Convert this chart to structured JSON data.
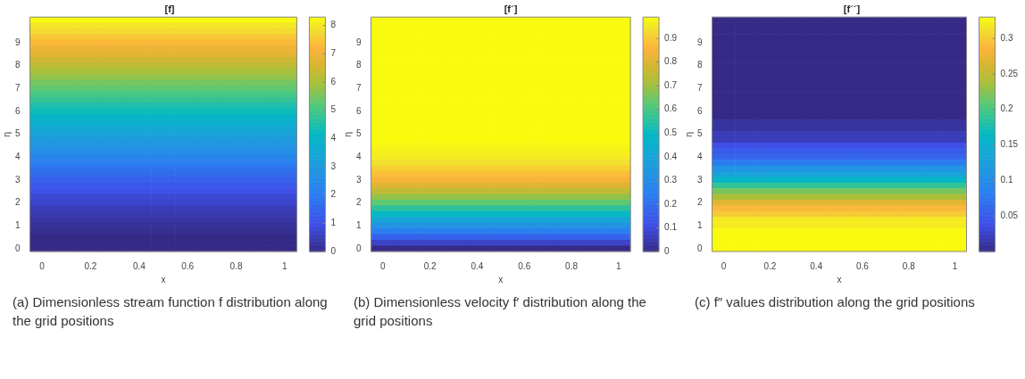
{
  "chart_data": [
    {
      "type": "heatmap",
      "title": "[f]",
      "xlabel": "x",
      "ylabel": "η",
      "categories": [
        "0",
        null,
        "0.2",
        null,
        "0.4",
        null,
        "0.6",
        null,
        "0.8",
        null,
        "1"
      ],
      "y_categories": [
        null,
        null,
        null,
        null,
        "9",
        null,
        null,
        null,
        "8",
        null,
        null,
        null,
        "7",
        null,
        null,
        null,
        "6",
        null,
        null,
        null,
        "5",
        null,
        null,
        null,
        "4",
        null,
        null,
        null,
        "3",
        null,
        null,
        null,
        "2",
        null,
        null,
        null,
        "1",
        null,
        null,
        null,
        "0"
      ],
      "cells": [
        [
          8.3,
          8.3,
          8.3,
          8.3,
          8.3,
          8.3,
          8.3,
          8.3,
          8.3,
          8.3,
          8.3
        ],
        [
          8.0,
          8.0,
          8.0,
          8.0,
          8.0,
          8.0,
          8.0,
          8.0,
          8.0,
          8.0,
          8.0
        ],
        [
          7.8,
          7.8,
          7.8,
          7.8,
          7.8,
          7.8,
          7.8,
          7.8,
          7.8,
          7.8,
          7.8
        ],
        [
          7.5,
          7.5,
          7.5,
          7.5,
          7.5,
          7.5,
          7.5,
          7.5,
          7.5,
          7.5,
          7.5
        ],
        [
          7.3,
          7.3,
          7.3,
          7.3,
          7.3,
          7.3,
          7.3,
          7.3,
          7.3,
          7.3,
          7.3
        ],
        [
          7.0,
          7.0,
          7.0,
          7.0,
          7.0,
          7.0,
          7.0,
          7.0,
          7.0,
          7.0,
          7.0
        ],
        [
          6.8,
          6.8,
          6.8,
          6.8,
          6.8,
          6.8,
          6.8,
          6.8,
          6.8,
          6.8,
          6.8
        ],
        [
          6.5,
          6.5,
          6.5,
          6.5,
          6.5,
          6.5,
          6.5,
          6.5,
          6.5,
          6.5,
          6.5
        ],
        [
          6.3,
          6.3,
          6.3,
          6.3,
          6.3,
          6.3,
          6.3,
          6.3,
          6.3,
          6.3,
          6.3
        ],
        [
          6.0,
          6.0,
          6.0,
          6.0,
          6.0,
          6.0,
          6.0,
          6.0,
          6.0,
          6.0,
          6.0
        ],
        [
          5.8,
          5.8,
          5.8,
          5.8,
          5.8,
          5.8,
          5.8,
          5.8,
          5.8,
          5.8,
          5.8
        ],
        [
          5.5,
          5.5,
          5.5,
          5.5,
          5.5,
          5.5,
          5.5,
          5.5,
          5.5,
          5.5,
          5.5
        ],
        [
          5.3,
          5.3,
          5.3,
          5.3,
          5.3,
          5.3,
          5.3,
          5.3,
          5.3,
          5.3,
          5.3
        ],
        [
          5.0,
          5.0,
          5.0,
          5.0,
          5.0,
          5.0,
          5.0,
          5.0,
          5.0,
          5.0,
          5.0
        ],
        [
          4.8,
          4.8,
          4.8,
          4.8,
          4.8,
          4.8,
          4.8,
          4.8,
          4.8,
          4.8,
          4.8
        ],
        [
          4.5,
          4.5,
          4.5,
          4.5,
          4.5,
          4.5,
          4.5,
          4.5,
          4.5,
          4.5,
          4.5
        ],
        [
          4.3,
          4.3,
          4.3,
          4.3,
          4.3,
          4.3,
          4.3,
          4.3,
          4.3,
          4.3,
          4.3
        ],
        [
          4.0,
          4.0,
          4.0,
          4.0,
          4.0,
          4.0,
          4.0,
          4.0,
          4.0,
          4.0,
          4.0
        ],
        [
          3.8,
          3.8,
          3.8,
          3.8,
          3.8,
          3.8,
          3.8,
          3.8,
          3.8,
          3.8,
          3.8
        ],
        [
          3.5,
          3.5,
          3.5,
          3.5,
          3.5,
          3.5,
          3.5,
          3.5,
          3.5,
          3.5,
          3.5
        ],
        [
          3.3,
          3.3,
          3.3,
          3.3,
          3.3,
          3.3,
          3.3,
          3.3,
          3.3,
          3.3,
          3.3
        ],
        [
          3.0,
          3.0,
          3.0,
          3.0,
          3.0,
          3.0,
          3.0,
          3.0,
          3.0,
          3.0,
          3.0
        ],
        [
          2.8,
          2.8,
          2.8,
          2.8,
          2.8,
          2.8,
          2.8,
          2.8,
          2.8,
          2.8,
          2.8
        ],
        [
          2.6,
          2.6,
          2.6,
          2.6,
          2.6,
          2.6,
          2.6,
          2.6,
          2.6,
          2.6,
          2.6
        ],
        [
          2.3,
          2.3,
          2.3,
          2.3,
          2.3,
          2.3,
          2.3,
          2.3,
          2.3,
          2.3,
          2.3
        ],
        [
          2.1,
          2.1,
          2.1,
          2.1,
          2.1,
          2.1,
          2.1,
          2.1,
          2.1,
          2.1,
          2.1
        ],
        [
          1.8,
          1.8,
          1.8,
          1.8,
          1.8,
          1.8,
          1.8,
          1.8,
          1.8,
          1.8,
          1.8
        ],
        [
          1.6,
          1.6,
          1.6,
          1.6,
          1.6,
          1.6,
          1.6,
          1.6,
          1.6,
          1.6,
          1.6
        ],
        [
          1.4,
          1.4,
          1.4,
          1.4,
          1.4,
          1.4,
          1.4,
          1.4,
          1.4,
          1.4,
          1.4
        ],
        [
          1.2,
          1.2,
          1.2,
          1.2,
          1.2,
          1.2,
          1.2,
          1.2,
          1.2,
          1.2,
          1.2
        ],
        [
          1.0,
          1.0,
          1.0,
          1.0,
          1.0,
          1.0,
          1.0,
          1.0,
          1.0,
          1.0,
          1.0
        ],
        [
          0.8,
          0.8,
          0.8,
          0.8,
          0.8,
          0.8,
          0.8,
          0.8,
          0.8,
          0.8,
          0.8
        ],
        [
          0.7,
          0.7,
          0.7,
          0.7,
          0.7,
          0.7,
          0.7,
          0.7,
          0.7,
          0.7,
          0.7
        ],
        [
          0.5,
          0.5,
          0.5,
          0.5,
          0.5,
          0.5,
          0.5,
          0.5,
          0.5,
          0.5,
          0.5
        ],
        [
          0.4,
          0.4,
          0.4,
          0.4,
          0.4,
          0.4,
          0.4,
          0.4,
          0.4,
          0.4,
          0.4
        ],
        [
          0.3,
          0.3,
          0.3,
          0.3,
          0.3,
          0.3,
          0.3,
          0.3,
          0.3,
          0.3,
          0.3
        ],
        [
          0.2,
          0.2,
          0.2,
          0.2,
          0.2,
          0.2,
          0.2,
          0.2,
          0.2,
          0.2,
          0.2
        ],
        [
          0.1,
          0.1,
          0.1,
          0.1,
          0.1,
          0.1,
          0.1,
          0.1,
          0.1,
          0.1,
          0.1
        ],
        [
          0.0,
          0.0,
          0.0,
          0.0,
          0.0,
          0.0,
          0.0,
          0.0,
          0.0,
          0.0,
          0.0
        ],
        [
          0.0,
          0.0,
          0.0,
          0.0,
          0.0,
          0.0,
          0.0,
          0.0,
          0.0,
          0.0,
          0.0
        ],
        [
          0.0,
          0.0,
          0.0,
          0.0,
          0.0,
          0.0,
          0.0,
          0.0,
          0.0,
          0.0,
          0.0
        ]
      ],
      "clim": [
        0,
        8.3
      ],
      "cticks": [
        0,
        1,
        2,
        3,
        4,
        5,
        6,
        7,
        8
      ],
      "annotations": [
        "(a) Dimensionless stream function f distribution along the grid positions"
      ]
    },
    {
      "type": "heatmap",
      "title": "[f´]",
      "xlabel": "x",
      "ylabel": "η",
      "categories": [
        "0",
        null,
        "0.2",
        null,
        "0.4",
        null,
        "0.6",
        null,
        "0.8",
        null,
        "1"
      ],
      "y_categories": [
        null,
        null,
        null,
        null,
        "9",
        null,
        null,
        null,
        "8",
        null,
        null,
        null,
        "7",
        null,
        null,
        null,
        "6",
        null,
        null,
        null,
        "5",
        null,
        null,
        null,
        "4",
        null,
        null,
        null,
        "3",
        null,
        null,
        null,
        "2",
        null,
        null,
        null,
        "1",
        null,
        null,
        null,
        "0"
      ],
      "cells": [
        [
          0.99,
          0.99,
          0.99,
          0.99,
          0.99,
          0.99,
          0.99,
          0.99,
          0.99,
          0.99,
          0.99
        ],
        [
          0.99,
          0.99,
          0.99,
          0.99,
          0.99,
          0.99,
          0.99,
          0.99,
          0.99,
          0.99,
          0.99
        ],
        [
          0.99,
          0.99,
          0.99,
          0.99,
          0.99,
          0.99,
          0.99,
          0.99,
          0.99,
          0.99,
          0.99
        ],
        [
          0.99,
          0.99,
          0.99,
          0.99,
          0.99,
          0.99,
          0.99,
          0.99,
          0.99,
          0.99,
          0.99
        ],
        [
          0.99,
          0.99,
          0.99,
          0.99,
          0.99,
          0.99,
          0.99,
          0.99,
          0.99,
          0.99,
          0.99
        ],
        [
          0.99,
          0.99,
          0.99,
          0.99,
          0.99,
          0.99,
          0.99,
          0.99,
          0.99,
          0.99,
          0.99
        ],
        [
          0.99,
          0.99,
          0.99,
          0.99,
          0.99,
          0.99,
          0.99,
          0.99,
          0.99,
          0.99,
          0.99
        ],
        [
          0.99,
          0.99,
          0.99,
          0.99,
          0.99,
          0.99,
          0.99,
          0.99,
          0.99,
          0.99,
          0.99
        ],
        [
          0.99,
          0.99,
          0.99,
          0.99,
          0.99,
          0.99,
          0.99,
          0.99,
          0.99,
          0.99,
          0.99
        ],
        [
          0.99,
          0.99,
          0.99,
          0.99,
          0.99,
          0.99,
          0.99,
          0.99,
          0.99,
          0.99,
          0.99
        ],
        [
          0.99,
          0.99,
          0.99,
          0.99,
          0.99,
          0.99,
          0.99,
          0.99,
          0.99,
          0.99,
          0.99
        ],
        [
          0.99,
          0.99,
          0.99,
          0.99,
          0.99,
          0.99,
          0.99,
          0.99,
          0.99,
          0.99,
          0.99
        ],
        [
          0.99,
          0.99,
          0.99,
          0.99,
          0.99,
          0.99,
          0.99,
          0.99,
          0.99,
          0.99,
          0.99
        ],
        [
          0.99,
          0.99,
          0.99,
          0.99,
          0.99,
          0.99,
          0.99,
          0.99,
          0.99,
          0.99,
          0.99
        ],
        [
          0.99,
          0.99,
          0.99,
          0.99,
          0.99,
          0.99,
          0.99,
          0.99,
          0.99,
          0.99,
          0.99
        ],
        [
          0.99,
          0.99,
          0.99,
          0.99,
          0.99,
          0.99,
          0.99,
          0.99,
          0.99,
          0.99,
          0.99
        ],
        [
          0.99,
          0.99,
          0.99,
          0.99,
          0.99,
          0.99,
          0.99,
          0.99,
          0.99,
          0.99,
          0.99
        ],
        [
          0.99,
          0.99,
          0.99,
          0.99,
          0.99,
          0.99,
          0.99,
          0.99,
          0.99,
          0.99,
          0.99
        ],
        [
          0.99,
          0.99,
          0.99,
          0.99,
          0.99,
          0.99,
          0.99,
          0.99,
          0.99,
          0.99,
          0.99
        ],
        [
          0.99,
          0.99,
          0.99,
          0.99,
          0.99,
          0.99,
          0.99,
          0.99,
          0.99,
          0.99,
          0.99
        ],
        [
          0.99,
          0.99,
          0.99,
          0.99,
          0.99,
          0.99,
          0.99,
          0.99,
          0.99,
          0.99,
          0.99
        ],
        [
          0.99,
          0.99,
          0.99,
          0.99,
          0.99,
          0.99,
          0.99,
          0.99,
          0.99,
          0.99,
          0.99
        ],
        [
          0.98,
          0.98,
          0.98,
          0.98,
          0.98,
          0.98,
          0.98,
          0.98,
          0.98,
          0.98,
          0.98
        ],
        [
          0.97,
          0.97,
          0.97,
          0.97,
          0.97,
          0.97,
          0.97,
          0.97,
          0.97,
          0.97,
          0.97
        ],
        [
          0.96,
          0.96,
          0.96,
          0.96,
          0.96,
          0.96,
          0.96,
          0.96,
          0.96,
          0.96,
          0.96
        ],
        [
          0.94,
          0.94,
          0.94,
          0.94,
          0.94,
          0.94,
          0.94,
          0.94,
          0.94,
          0.94,
          0.94
        ],
        [
          0.91,
          0.91,
          0.91,
          0.91,
          0.91,
          0.91,
          0.91,
          0.91,
          0.91,
          0.91,
          0.91
        ],
        [
          0.88,
          0.88,
          0.88,
          0.88,
          0.88,
          0.88,
          0.88,
          0.88,
          0.88,
          0.88,
          0.88
        ],
        [
          0.85,
          0.85,
          0.85,
          0.85,
          0.85,
          0.85,
          0.85,
          0.85,
          0.85,
          0.85,
          0.85
        ],
        [
          0.8,
          0.8,
          0.8,
          0.8,
          0.8,
          0.8,
          0.8,
          0.8,
          0.8,
          0.8,
          0.8
        ],
        [
          0.75,
          0.75,
          0.75,
          0.75,
          0.75,
          0.75,
          0.75,
          0.75,
          0.75,
          0.75,
          0.75
        ],
        [
          0.69,
          0.69,
          0.69,
          0.69,
          0.69,
          0.69,
          0.69,
          0.69,
          0.69,
          0.69,
          0.69
        ],
        [
          0.63,
          0.63,
          0.63,
          0.63,
          0.63,
          0.63,
          0.63,
          0.63,
          0.63,
          0.63,
          0.63
        ],
        [
          0.56,
          0.56,
          0.56,
          0.56,
          0.56,
          0.56,
          0.56,
          0.56,
          0.56,
          0.56,
          0.56
        ],
        [
          0.49,
          0.49,
          0.49,
          0.49,
          0.49,
          0.49,
          0.49,
          0.49,
          0.49,
          0.49,
          0.49
        ],
        [
          0.41,
          0.41,
          0.41,
          0.41,
          0.41,
          0.41,
          0.41,
          0.41,
          0.41,
          0.41,
          0.41
        ],
        [
          0.33,
          0.33,
          0.33,
          0.33,
          0.33,
          0.33,
          0.33,
          0.33,
          0.33,
          0.33,
          0.33
        ],
        [
          0.25,
          0.25,
          0.25,
          0.25,
          0.25,
          0.25,
          0.25,
          0.25,
          0.25,
          0.25,
          0.25
        ],
        [
          0.17,
          0.17,
          0.17,
          0.17,
          0.17,
          0.17,
          0.17,
          0.17,
          0.17,
          0.17,
          0.17
        ],
        [
          0.08,
          0.08,
          0.08,
          0.08,
          0.08,
          0.08,
          0.08,
          0.08,
          0.08,
          0.08,
          0.08
        ],
        [
          0.0,
          0.0,
          0.0,
          0.0,
          0.0,
          0.0,
          0.0,
          0.0,
          0.0,
          0.0,
          0.0
        ]
      ],
      "clim": [
        0,
        0.99
      ],
      "cticks": [
        0,
        0.1,
        0.2,
        0.3,
        0.4,
        0.5,
        0.6,
        0.7,
        0.8,
        0.9
      ],
      "annotations": [
        "(b) Dimensionless velocity f′ distribution along the grid positions"
      ]
    },
    {
      "type": "heatmap",
      "title": "[f´´]",
      "xlabel": "x",
      "ylabel": "η",
      "categories": [
        "0",
        null,
        "0.2",
        null,
        "0.4",
        null,
        "0.6",
        null,
        "0.8",
        null,
        "1"
      ],
      "y_categories": [
        null,
        null,
        null,
        null,
        "9",
        null,
        null,
        null,
        "8",
        null,
        null,
        null,
        "7",
        null,
        null,
        null,
        "6",
        null,
        null,
        null,
        "5",
        null,
        null,
        null,
        "4",
        null,
        null,
        null,
        "3",
        null,
        null,
        null,
        "2",
        null,
        null,
        null,
        "1",
        null,
        null,
        null,
        "0"
      ],
      "cells": [
        [
          0.0,
          0.0,
          0.0,
          0.0,
          0.0,
          0.0,
          0.0,
          0.0,
          0.0,
          0.0,
          0.0
        ],
        [
          0.0,
          0.0,
          0.0,
          0.0,
          0.0,
          0.0,
          0.0,
          0.0,
          0.0,
          0.0,
          0.0
        ],
        [
          0.0,
          0.0,
          0.0,
          0.0,
          0.0,
          0.0,
          0.0,
          0.0,
          0.0,
          0.0,
          0.0
        ],
        [
          0.0,
          0.0,
          0.0,
          0.0,
          0.0,
          0.0,
          0.0,
          0.0,
          0.0,
          0.0,
          0.0
        ],
        [
          0.0,
          0.0,
          0.0,
          0.0,
          0.0,
          0.0,
          0.0,
          0.0,
          0.0,
          0.0,
          0.0
        ],
        [
          0.0,
          0.0,
          0.0,
          0.0,
          0.0,
          0.0,
          0.0,
          0.0,
          0.0,
          0.0,
          0.0
        ],
        [
          0.0,
          0.0,
          0.0,
          0.0,
          0.0,
          0.0,
          0.0,
          0.0,
          0.0,
          0.0,
          0.0
        ],
        [
          0.0,
          0.0,
          0.0,
          0.0,
          0.0,
          0.0,
          0.0,
          0.0,
          0.0,
          0.0,
          0.0
        ],
        [
          0.0,
          0.0,
          0.0,
          0.0,
          0.0,
          0.0,
          0.0,
          0.0,
          0.0,
          0.0,
          0.0
        ],
        [
          0.0,
          0.0,
          0.0,
          0.0,
          0.0,
          0.0,
          0.0,
          0.0,
          0.0,
          0.0,
          0.0
        ],
        [
          0.0,
          0.0,
          0.0,
          0.0,
          0.0,
          0.0,
          0.0,
          0.0,
          0.0,
          0.0,
          0.0
        ],
        [
          0.0,
          0.0,
          0.0,
          0.0,
          0.0,
          0.0,
          0.0,
          0.0,
          0.0,
          0.0,
          0.0
        ],
        [
          0.0,
          0.0,
          0.0,
          0.0,
          0.0,
          0.0,
          0.0,
          0.0,
          0.0,
          0.0,
          0.0
        ],
        [
          0.0,
          0.0,
          0.0,
          0.0,
          0.0,
          0.0,
          0.0,
          0.0,
          0.0,
          0.0,
          0.0
        ],
        [
          0.0,
          0.0,
          0.0,
          0.0,
          0.0,
          0.0,
          0.0,
          0.0,
          0.0,
          0.0,
          0.0
        ],
        [
          0.0,
          0.0,
          0.0,
          0.0,
          0.0,
          0.0,
          0.0,
          0.0,
          0.0,
          0.0,
          0.0
        ],
        [
          0.0,
          0.0,
          0.0,
          0.0,
          0.0,
          0.0,
          0.0,
          0.0,
          0.0,
          0.0,
          0.0
        ],
        [
          0.0,
          0.0,
          0.0,
          0.0,
          0.0,
          0.0,
          0.0,
          0.0,
          0.0,
          0.0,
          0.0
        ],
        [
          0.01,
          0.01,
          0.01,
          0.01,
          0.01,
          0.01,
          0.01,
          0.01,
          0.01,
          0.01,
          0.01
        ],
        [
          0.01,
          0.01,
          0.01,
          0.01,
          0.01,
          0.01,
          0.01,
          0.01,
          0.01,
          0.01,
          0.01
        ],
        [
          0.02,
          0.02,
          0.02,
          0.02,
          0.02,
          0.02,
          0.02,
          0.02,
          0.02,
          0.02,
          0.02
        ],
        [
          0.02,
          0.02,
          0.02,
          0.02,
          0.02,
          0.02,
          0.02,
          0.02,
          0.02,
          0.02,
          0.02
        ],
        [
          0.04,
          0.04,
          0.04,
          0.04,
          0.04,
          0.04,
          0.04,
          0.04,
          0.04,
          0.04,
          0.04
        ],
        [
          0.05,
          0.05,
          0.05,
          0.05,
          0.05,
          0.05,
          0.05,
          0.05,
          0.05,
          0.05,
          0.05
        ],
        [
          0.06,
          0.06,
          0.06,
          0.06,
          0.06,
          0.06,
          0.06,
          0.06,
          0.06,
          0.06,
          0.06
        ],
        [
          0.08,
          0.08,
          0.08,
          0.08,
          0.08,
          0.08,
          0.08,
          0.08,
          0.08,
          0.08,
          0.08
        ],
        [
          0.11,
          0.11,
          0.11,
          0.11,
          0.11,
          0.11,
          0.11,
          0.11,
          0.11,
          0.11,
          0.11
        ],
        [
          0.13,
          0.13,
          0.13,
          0.13,
          0.13,
          0.13,
          0.13,
          0.13,
          0.13,
          0.13,
          0.13
        ],
        [
          0.16,
          0.16,
          0.16,
          0.16,
          0.16,
          0.16,
          0.16,
          0.16,
          0.16,
          0.16,
          0.16
        ],
        [
          0.19,
          0.19,
          0.19,
          0.19,
          0.19,
          0.19,
          0.19,
          0.19,
          0.19,
          0.19,
          0.19
        ],
        [
          0.22,
          0.22,
          0.22,
          0.22,
          0.22,
          0.22,
          0.22,
          0.22,
          0.22,
          0.22,
          0.22
        ],
        [
          0.24,
          0.24,
          0.24,
          0.24,
          0.24,
          0.24,
          0.24,
          0.24,
          0.24,
          0.24,
          0.24
        ],
        [
          0.27,
          0.27,
          0.27,
          0.27,
          0.27,
          0.27,
          0.27,
          0.27,
          0.27,
          0.27,
          0.27
        ],
        [
          0.29,
          0.29,
          0.29,
          0.29,
          0.29,
          0.29,
          0.29,
          0.29,
          0.29,
          0.29,
          0.29
        ],
        [
          0.3,
          0.3,
          0.3,
          0.3,
          0.3,
          0.3,
          0.3,
          0.3,
          0.3,
          0.3,
          0.3
        ],
        [
          0.32,
          0.32,
          0.32,
          0.32,
          0.32,
          0.32,
          0.32,
          0.32,
          0.32,
          0.32,
          0.32
        ],
        [
          0.32,
          0.32,
          0.32,
          0.32,
          0.32,
          0.32,
          0.32,
          0.32,
          0.32,
          0.32,
          0.32
        ],
        [
          0.33,
          0.33,
          0.33,
          0.33,
          0.33,
          0.33,
          0.33,
          0.33,
          0.33,
          0.33,
          0.33
        ],
        [
          0.33,
          0.33,
          0.33,
          0.33,
          0.33,
          0.33,
          0.33,
          0.33,
          0.33,
          0.33,
          0.33
        ],
        [
          0.33,
          0.33,
          0.33,
          0.33,
          0.33,
          0.33,
          0.33,
          0.33,
          0.33,
          0.33,
          0.33
        ],
        [
          0.33,
          0.33,
          0.33,
          0.33,
          0.33,
          0.33,
          0.33,
          0.33,
          0.33,
          0.33,
          0.33
        ]
      ],
      "clim": [
        0,
        0.33
      ],
      "cticks": [
        0.05,
        0.1,
        0.15,
        0.2,
        0.25,
        0.3
      ],
      "annotations": [
        "(c) f″ values distribution along the grid positions"
      ]
    }
  ]
}
